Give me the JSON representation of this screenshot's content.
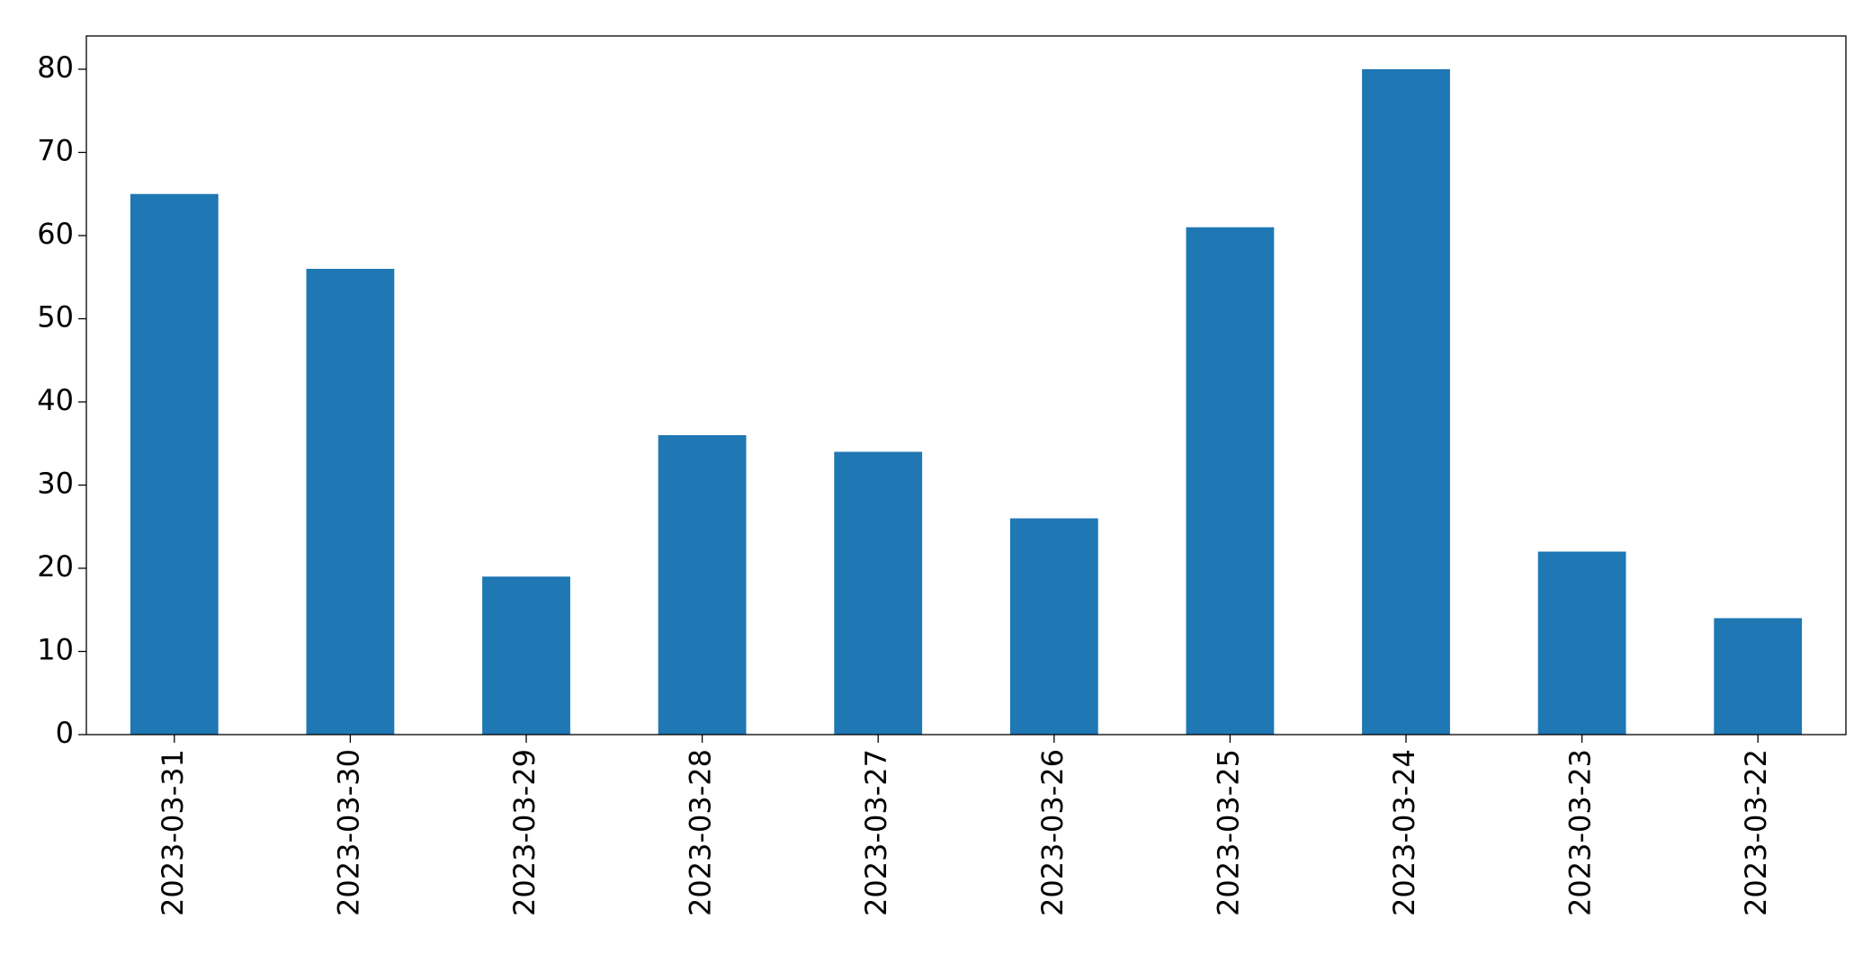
{
  "chart_data": {
    "type": "bar",
    "categories": [
      "2023-03-31",
      "2023-03-30",
      "2023-03-29",
      "2023-03-28",
      "2023-03-27",
      "2023-03-26",
      "2023-03-25",
      "2023-03-24",
      "2023-03-23",
      "2023-03-22"
    ],
    "values": [
      65,
      56,
      19,
      36,
      34,
      26,
      61,
      80,
      22,
      14
    ],
    "color": "#1f77b4",
    "ylim": [
      0,
      84
    ],
    "yticks": [
      0,
      10,
      20,
      30,
      40,
      50,
      60,
      70,
      80
    ],
    "grid": false
  }
}
